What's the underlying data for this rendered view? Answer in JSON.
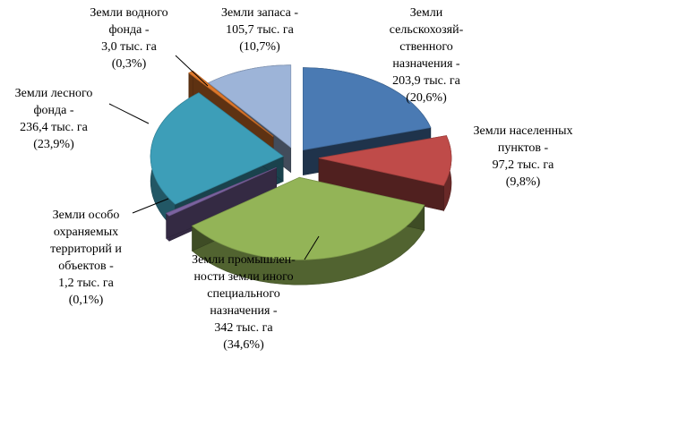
{
  "chart_data": {
    "type": "pie",
    "style": "3d-exploded",
    "title": "",
    "unit": "тыс. га",
    "slices": [
      {
        "name": "Земли сельскохозяйственного назначения",
        "value": 203.9,
        "percent": 20.6,
        "color": "#4a7ab3",
        "label_lines": [
          "Земли",
          "сельскохозяй-",
          "ственного",
          "назначения -",
          "203,9 тыс. га",
          "(20,6%)"
        ]
      },
      {
        "name": "Земли населенных пунктов",
        "value": 97.2,
        "percent": 9.8,
        "color": "#bf4b49",
        "label_lines": [
          "Земли населенных",
          "пунктов -",
          "97,2 тыс. га",
          "(9,8%)"
        ]
      },
      {
        "name": "Земли промышленности земли иного специального назначения",
        "value": 342,
        "percent": 34.6,
        "color": "#93b457",
        "label_lines": [
          "Земли промышлен-",
          "ности земли иного",
          "специального",
          "назначения -",
          "342 тыс. га",
          "(34,6%)"
        ]
      },
      {
        "name": "Земли особо охраняемых территорий и объектов",
        "value": 1.2,
        "percent": 0.1,
        "color": "#7b63a0",
        "label_lines": [
          "Земли особо",
          "охраняемых",
          "территорий и",
          "объектов -",
          "1,2 тыс. га",
          "(0,1%)"
        ]
      },
      {
        "name": "Земли лесного фонда",
        "value": 236.4,
        "percent": 23.9,
        "color": "#3d9eb8",
        "label_lines": [
          "Земли лесного",
          "фонда -",
          "236,4 тыс. га",
          "(23,9%)"
        ]
      },
      {
        "name": "Земли водного фонда",
        "value": 3.0,
        "percent": 0.3,
        "color": "#e0782a",
        "label_lines": [
          "Земли водного",
          "фонда -",
          "3,0 тыс. га",
          "(0,3%)"
        ]
      },
      {
        "name": "Земли запаса",
        "value": 105.7,
        "percent": 10.7,
        "color": "#9db4d8",
        "label_lines": [
          "Земли запаса -",
          "105,7 тыс. га",
          "(10,7%)"
        ]
      }
    ]
  }
}
